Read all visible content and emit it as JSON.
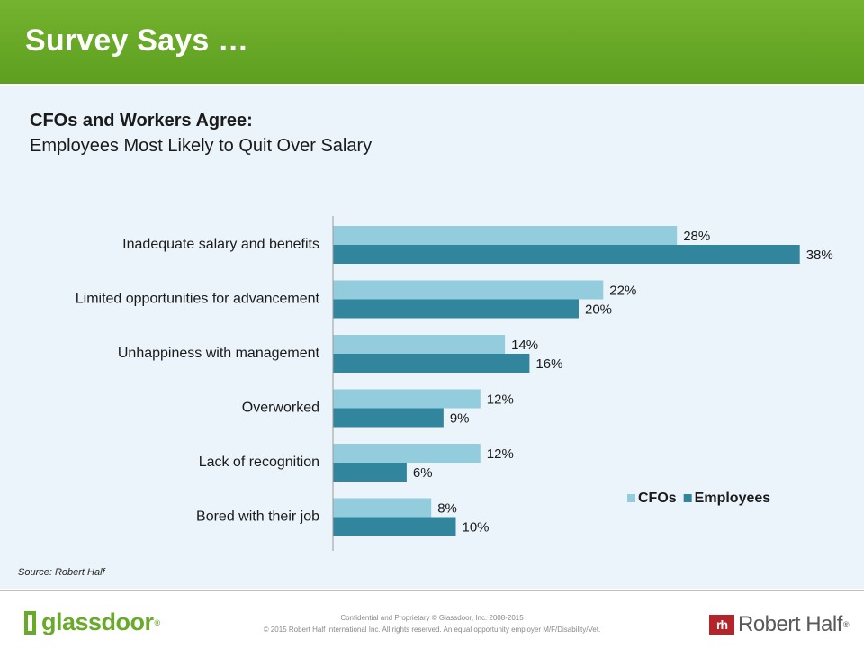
{
  "header": {
    "title": "Survey Says …"
  },
  "subtitle": {
    "line1": "CFOs and Workers Agree:",
    "line2": "Employees Most Likely to Quit Over Salary"
  },
  "chart_data": {
    "type": "bar",
    "orientation": "horizontal",
    "categories": [
      "Inadequate salary and benefits",
      "Limited opportunities for advancement",
      "Unhappiness with management",
      "Overworked",
      "Lack of recognition",
      "Bored with their job"
    ],
    "series": [
      {
        "name": "CFOs",
        "values": [
          28,
          22,
          14,
          12,
          12,
          8
        ],
        "color": "#93cddd"
      },
      {
        "name": "Employees",
        "values": [
          38,
          20,
          16,
          9,
          6,
          10
        ],
        "color": "#31859c"
      }
    ],
    "value_format": "%",
    "xlim": [
      0,
      40
    ],
    "legend": "bottom-right",
    "grid": false
  },
  "source": "Source: Robert Half",
  "footer": {
    "confidential": "Confidential and Proprietary © Glassdoor, Inc. 2008-2015",
    "copyright": "© 2015 Robert Half International Inc. All rights reserved. An equal opportunity employer M/F/Disability/Vet.",
    "glassdoor_logo": "glassdoor",
    "robert_half_logo": "Robert Half",
    "robert_half_mark": "rh",
    "reg": "®"
  }
}
